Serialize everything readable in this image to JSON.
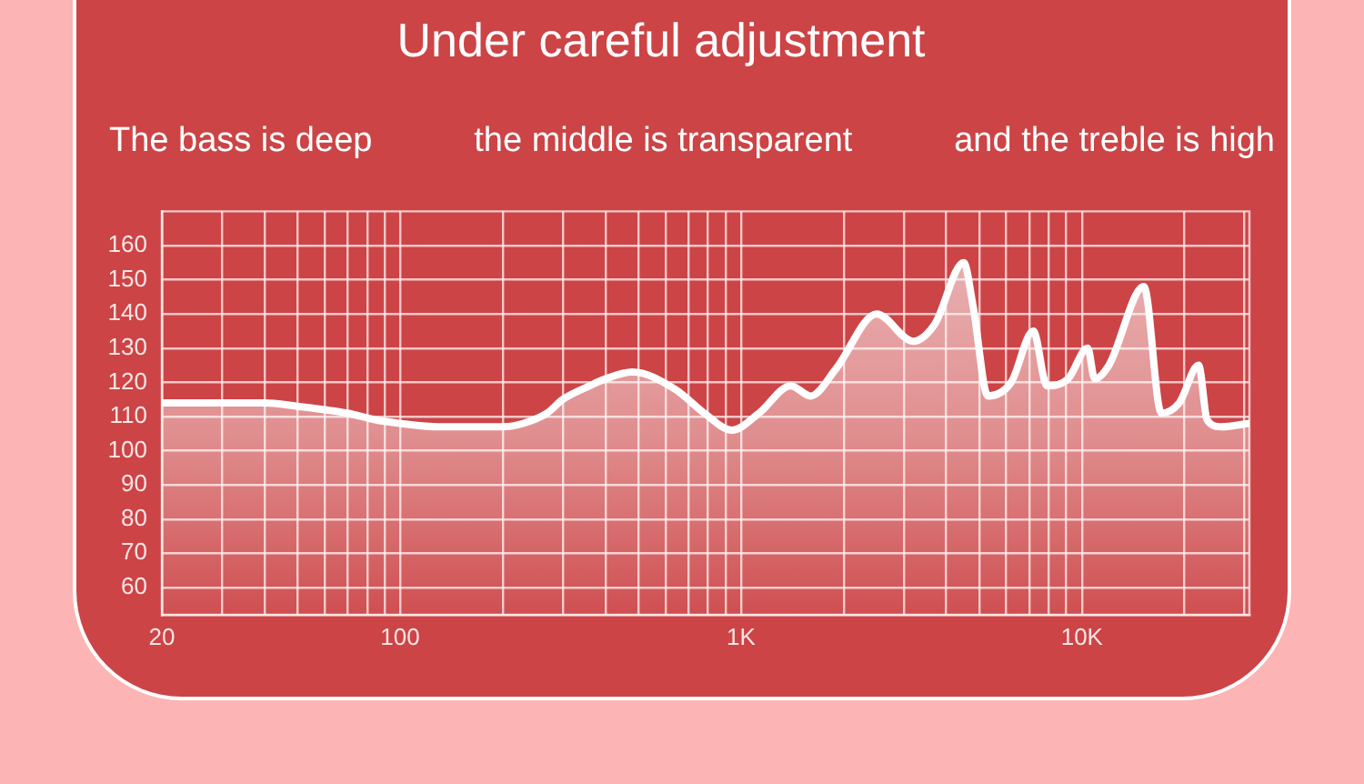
{
  "chart_data": {
    "type": "area",
    "title": "Under careful adjustment",
    "annotations": [
      "The bass is deep",
      "the middle is transparent",
      "and the treble is high"
    ],
    "x": [
      20,
      25,
      32,
      40,
      50,
      60,
      70,
      85,
      100,
      130,
      165,
      200,
      230,
      270,
      300,
      360,
      400,
      480,
      640,
      780,
      940,
      1130,
      1400,
      1600,
      1900,
      2500,
      3200,
      3700,
      4500,
      4800,
      5300,
      6200,
      7200,
      7900,
      9100,
      10400,
      10900,
      12000,
      15200,
      17100,
      19300,
      22000,
      23300,
      25600,
      31000
    ],
    "values": [
      114,
      114,
      114,
      114,
      113,
      112,
      111,
      109,
      108,
      107,
      107,
      107,
      108,
      111,
      115,
      119,
      121,
      123,
      118,
      111,
      106,
      111,
      119,
      116,
      124,
      140,
      132,
      137,
      155,
      142,
      116,
      120,
      135,
      119,
      121,
      130,
      121,
      125,
      148,
      111,
      114,
      125,
      109,
      107,
      108
    ],
    "color": "#ffffff",
    "log": "x",
    "xlim": [
      20,
      31000
    ],
    "xticks": [
      20,
      {
        "value": 30,
        "label": null
      },
      {
        "value": 40,
        "label": null
      },
      {
        "value": 50,
        "label": null
      },
      {
        "value": 60,
        "label": null
      },
      {
        "value": 70,
        "label": null
      },
      {
        "value": 80,
        "label": null
      },
      {
        "value": 90,
        "label": null
      },
      100,
      {
        "value": 200,
        "label": null
      },
      {
        "value": 300,
        "label": null
      },
      {
        "value": 400,
        "label": null
      },
      {
        "value": 500,
        "label": null
      },
      {
        "value": 600,
        "label": null
      },
      {
        "value": 700,
        "label": null
      },
      {
        "value": 800,
        "label": null
      },
      {
        "value": 900,
        "label": null
      },
      {
        "value": 1000,
        "label": "1K"
      },
      {
        "value": 2000,
        "label": null
      },
      {
        "value": 3000,
        "label": null
      },
      {
        "value": 4000,
        "label": null
      },
      {
        "value": 5000,
        "label": null
      },
      {
        "value": 6000,
        "label": null
      },
      {
        "value": 7000,
        "label": null
      },
      {
        "value": 8000,
        "label": null
      },
      {
        "value": 9000,
        "label": null
      },
      {
        "value": 10000,
        "label": "10K"
      },
      {
        "value": 20000,
        "label": null
      },
      {
        "value": 30000,
        "label": null
      }
    ],
    "ylim": [
      52,
      170
    ],
    "yticks": [
      60,
      70,
      80,
      90,
      100,
      110,
      120,
      130,
      140,
      150,
      160
    ],
    "grid": true,
    "legend": false,
    "marker": "none"
  }
}
